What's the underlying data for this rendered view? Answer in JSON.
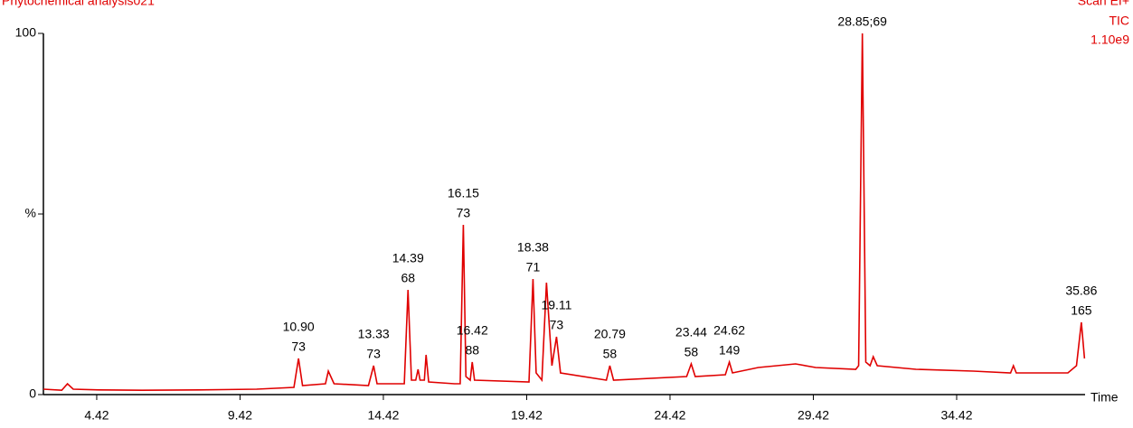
{
  "chart_data": {
    "type": "line",
    "title": "Phytochemical analysis021",
    "header_right": [
      "Scan EI+",
      "TIC",
      "1.10e9"
    ],
    "x_label": "Time",
    "xlim": [
      2.56,
      38.9
    ],
    "ylim": [
      0,
      100
    ],
    "xticks": [
      4.42,
      9.42,
      14.42,
      19.42,
      24.42,
      29.42,
      34.42
    ],
    "yticks": [
      0,
      {
        "value": 50,
        "label": "%"
      },
      100
    ],
    "series": [
      {
        "color": "#e00000",
        "x": [
          2.56,
          3.2,
          3.4,
          3.6,
          4.5,
          6,
          8,
          10,
          11.3,
          11.46,
          11.6,
          12.4,
          12.5,
          12.7,
          13.9,
          14.08,
          14.2,
          15.15,
          15.28,
          15.4,
          15.55,
          15.63,
          15.7,
          15.85,
          15.91,
          16.0,
          16.9,
          17.1,
          17.21,
          17.3,
          17.45,
          17.52,
          17.6,
          19.5,
          19.64,
          19.75,
          19.95,
          20.11,
          20.3,
          20.46,
          20.6,
          22.2,
          22.32,
          22.45,
          25.0,
          25.16,
          25.3,
          26.35,
          26.49,
          26.6,
          27.5,
          28.8,
          29.5,
          30.9,
          31.0,
          31.13,
          31.25,
          31.4,
          31.51,
          31.65,
          33,
          35,
          36.3,
          36.4,
          36.5,
          38.3,
          38.6,
          38.77,
          38.88
        ],
        "values": [
          1.5,
          1.2,
          3,
          1.5,
          1.3,
          1.2,
          1.3,
          1.5,
          2,
          10,
          2.5,
          3,
          6.5,
          3,
          2.5,
          8,
          3,
          3,
          29,
          4,
          4,
          7,
          4,
          4,
          11,
          3.5,
          3,
          3,
          47,
          5,
          4,
          9,
          4,
          3.5,
          32,
          6,
          4,
          31,
          8,
          16,
          6,
          4,
          8,
          4,
          5,
          8.5,
          5,
          5.5,
          9,
          6,
          7.5,
          8.5,
          7.5,
          7,
          8,
          100,
          9,
          8,
          10.5,
          8,
          7,
          6.5,
          6,
          8,
          6,
          6,
          8,
          20,
          10
        ]
      }
    ],
    "annotations": [
      {
        "x": 11.46,
        "y": 10,
        "lines": [
          "10.90",
          "73"
        ]
      },
      {
        "x": 14.08,
        "y": 8,
        "lines": [
          "13.33",
          "73"
        ]
      },
      {
        "x": 15.28,
        "y": 29,
        "lines": [
          "14.39",
          "68"
        ]
      },
      {
        "x": 17.21,
        "y": 47,
        "lines": [
          "16.15",
          "73"
        ]
      },
      {
        "x": 17.52,
        "y": 9,
        "lines": [
          "16.42",
          "88"
        ]
      },
      {
        "x": 19.64,
        "y": 32,
        "lines": [
          "18.38",
          "71"
        ]
      },
      {
        "x": 20.46,
        "y": 16,
        "lines": [
          "19.11",
          "73"
        ]
      },
      {
        "x": 22.32,
        "y": 8,
        "lines": [
          "20.79",
          "58"
        ]
      },
      {
        "x": 25.16,
        "y": 8.5,
        "lines": [
          "23.44",
          "58"
        ]
      },
      {
        "x": 26.49,
        "y": 9,
        "lines": [
          "24.62",
          "149"
        ]
      },
      {
        "x": 31.13,
        "y": 100,
        "lines": [
          "28.85;69"
        ]
      },
      {
        "x": 38.77,
        "y": 20,
        "lines": [
          "35.86",
          "165"
        ]
      }
    ]
  }
}
